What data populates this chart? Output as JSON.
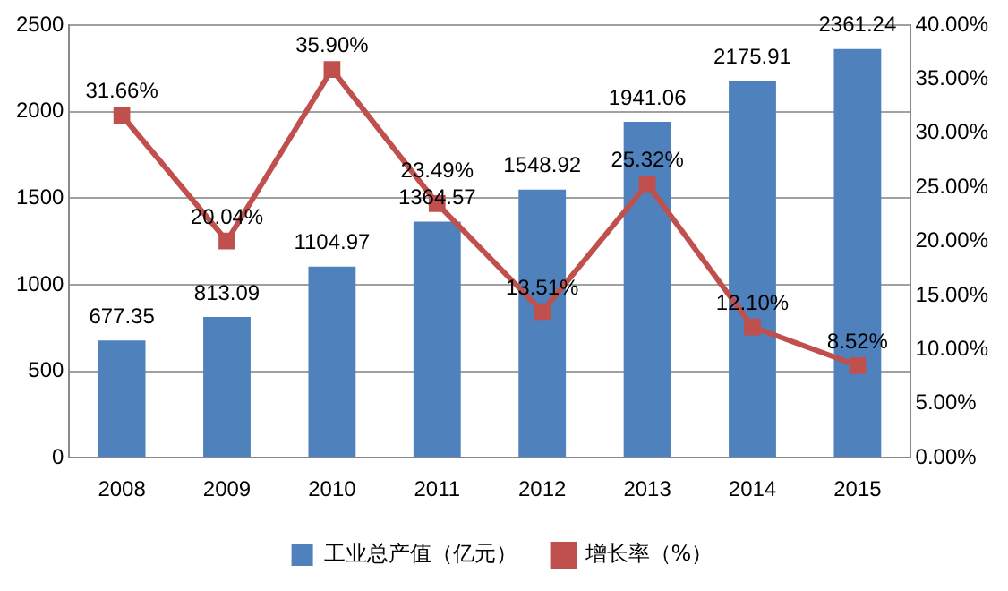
{
  "chart_data": {
    "type": "bar",
    "categories": [
      "2008",
      "2009",
      "2010",
      "2011",
      "2012",
      "2013",
      "2014",
      "2015"
    ],
    "series": [
      {
        "name": "工业总产值（亿元）",
        "color": "#4f81bd",
        "values": [
          677.35,
          813.09,
          1104.97,
          1364.57,
          1548.92,
          1941.06,
          2175.91,
          2361.24
        ],
        "value_labels": [
          "677.35",
          "813.09",
          "1104.97",
          "1364.57",
          "1548.92",
          "1941.06",
          "2175.91",
          "2361.24"
        ]
      },
      {
        "name": "增长率（%）",
        "type": "line",
        "axis": "y2",
        "color": "#c0504d",
        "values": [
          31.66,
          20.04,
          35.9,
          23.49,
          13.51,
          25.32,
          12.1,
          8.52
        ],
        "value_labels": [
          "31.66%",
          "20.04%",
          "35.90%",
          "23.49%",
          "13.51%",
          "25.32%",
          "12.10%",
          "8.52%"
        ]
      }
    ],
    "ylim": [
      0,
      2500
    ],
    "yticks": [
      0,
      500,
      1000,
      1500,
      2000,
      2500
    ],
    "y2lim": [
      0,
      40
    ],
    "y2ticks": [
      {
        "value": 0,
        "label": "0.00%"
      },
      {
        "value": 5,
        "label": "5.00%"
      },
      {
        "value": 10,
        "label": "10.00%"
      },
      {
        "value": 15,
        "label": "15.00%"
      },
      {
        "value": 20,
        "label": "20.00%"
      },
      {
        "value": 25,
        "label": "25.00%"
      },
      {
        "value": 30,
        "label": "30.00%"
      },
      {
        "value": 35,
        "label": "35.00%"
      },
      {
        "value": 40,
        "label": "40.00%"
      }
    ],
    "grid": "y",
    "legend": "bottom",
    "marker": "square",
    "line_style": "solid"
  }
}
